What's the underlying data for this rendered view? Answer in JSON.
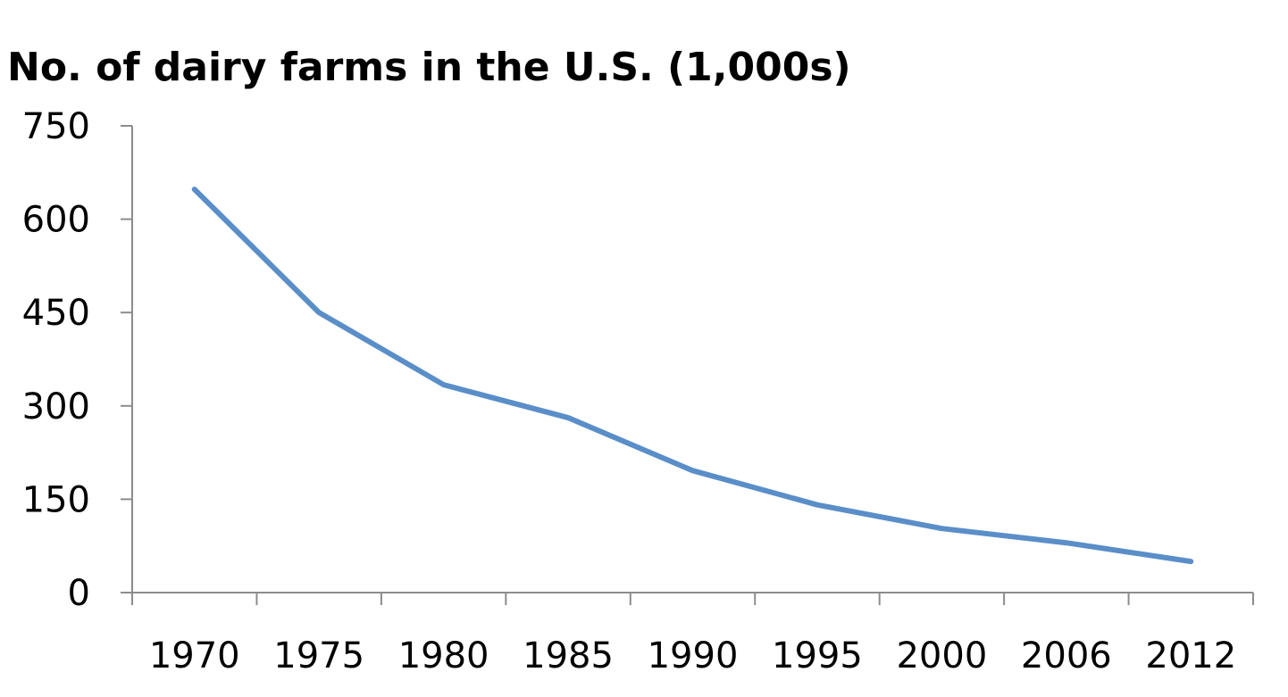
{
  "chart_data": {
    "type": "line",
    "title": "No. of dairy farms in the U.S. (1,000s)",
    "categories": [
      "1970",
      "1975",
      "1980",
      "1985",
      "1990",
      "1995",
      "2000",
      "2006",
      "2012"
    ],
    "series": [
      {
        "color": "#5a8ec8",
        "values": [
          648,
          450,
          334,
          281,
          196,
          141,
          103,
          80,
          50
        ]
      }
    ],
    "ylim": [
      0,
      750
    ],
    "yticks": [
      0,
      150,
      300,
      450,
      600,
      750
    ],
    "grid": false
  }
}
